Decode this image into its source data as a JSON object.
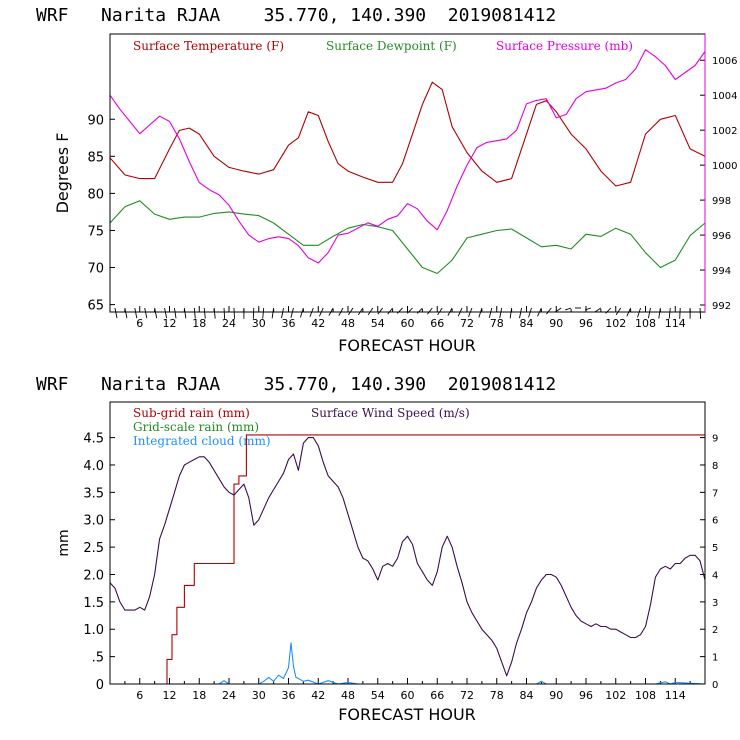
{
  "chart_data": [
    {
      "type": "line",
      "title": "WRF   Narita RJAA    35.770, 140.390  2019081412",
      "xlabel": "FORECAST HOUR",
      "ylabel": "Degrees F",
      "xlim": [
        0,
        120
      ],
      "ylim": [
        64,
        101.5
      ],
      "y2lim": [
        991.6,
        1007.5
      ],
      "x_ticks": [
        "6",
        "12",
        "18",
        "24",
        "30",
        "36",
        "42",
        "48",
        "54",
        "60",
        "66",
        "72",
        "78",
        "84",
        "90",
        "96",
        "102",
        "108",
        "114"
      ],
      "y_ticks": [
        "65",
        "70",
        "75",
        "80",
        "85",
        "90"
      ],
      "y2_ticks": [
        "992",
        "994",
        "996",
        "998",
        "1000",
        "1002",
        "1004",
        "1006"
      ],
      "colors": {
        "temperature": "#b00000",
        "dewpoint": "#228b22",
        "pressure": "#e000e0",
        "barbs": "#000000"
      },
      "legend": [
        "Surface Temperature (F)",
        "Surface Dewpoint (F)",
        "Surface Pressure (mb)"
      ],
      "series": [
        {
          "name": "Surface Temperature (F)",
          "axis": "left",
          "x": [
            0,
            3,
            6,
            9,
            12,
            14,
            16,
            18,
            21,
            24,
            27,
            30,
            33,
            36,
            38,
            40,
            42,
            44,
            46,
            48,
            51,
            54,
            57,
            59,
            61,
            63,
            65,
            67,
            69,
            72,
            75,
            78,
            81,
            84,
            86,
            88,
            90,
            93,
            96,
            99,
            102,
            105,
            108,
            111,
            114,
            117,
            120
          ],
          "values": [
            84.8,
            82.5,
            82,
            82,
            86,
            88.5,
            88.8,
            88,
            85,
            83.5,
            83,
            82.6,
            83.2,
            86.5,
            87.5,
            91,
            90.5,
            87,
            84,
            83,
            82.2,
            81.5,
            81.5,
            84,
            88,
            92,
            95,
            94,
            89,
            85.5,
            83,
            81.5,
            82,
            88,
            92,
            92.5,
            91,
            88,
            86,
            83,
            81,
            81.5,
            88,
            90,
            90.5,
            86,
            85
          ]
        },
        {
          "name": "Surface Dewpoint (F)",
          "axis": "left",
          "x": [
            0,
            3,
            6,
            9,
            12,
            15,
            18,
            21,
            24,
            27,
            30,
            33,
            36,
            39,
            42,
            45,
            48,
            51,
            54,
            57,
            60,
            63,
            66,
            69,
            72,
            75,
            78,
            81,
            84,
            87,
            90,
            93,
            96,
            99,
            102,
            105,
            108,
            111,
            114,
            117,
            120
          ],
          "values": [
            76,
            78.2,
            79,
            77.2,
            76.5,
            76.8,
            76.8,
            77.3,
            77.5,
            77.2,
            77,
            76,
            74.5,
            73,
            73,
            74.2,
            75.3,
            75.8,
            75.5,
            75,
            72.5,
            70,
            69.2,
            71,
            74,
            74.5,
            75,
            75.2,
            74,
            72.8,
            73,
            72.5,
            74.5,
            74.2,
            75.3,
            74.5,
            72,
            70,
            71,
            74.3,
            76
          ]
        },
        {
          "name": "Surface Pressure (mb)",
          "axis": "right",
          "x": [
            0,
            2,
            4,
            6,
            8,
            10,
            12,
            14,
            16,
            18,
            20,
            22,
            24,
            26,
            28,
            30,
            32,
            34,
            36,
            38,
            40,
            42,
            44,
            46,
            48,
            50,
            52,
            54,
            56,
            58,
            60,
            62,
            64,
            66,
            68,
            70,
            72,
            74,
            76,
            78,
            80,
            82,
            84,
            86,
            88,
            90,
            92,
            94,
            96,
            98,
            100,
            102,
            104,
            106,
            108,
            110,
            112,
            114,
            116,
            118,
            120
          ],
          "values": [
            1004,
            1003.2,
            1002.5,
            1001.8,
            1002.3,
            1002.8,
            1002.5,
            1001.5,
            1000.2,
            999,
            998.6,
            998.3,
            997.7,
            996.8,
            996,
            995.6,
            995.8,
            995.9,
            995.8,
            995.4,
            994.7,
            994.4,
            995,
            996,
            996.1,
            996.4,
            996.7,
            996.5,
            996.9,
            997.1,
            997.8,
            997.5,
            996.8,
            996.3,
            997.4,
            998.8,
            1000,
            1001,
            1001.3,
            1001.4,
            1001.5,
            1002,
            1003.5,
            1003.7,
            1003.8,
            1002.7,
            1002.9,
            1003.8,
            1004.2,
            1004.3,
            1004.4,
            1004.7,
            1004.9,
            1005.5,
            1006.6,
            1006.2,
            1005.7,
            1004.9,
            1005.3,
            1005.7,
            1006.5
          ]
        },
        {
          "name": "Wind barbs",
          "note": "wind barbs drawn along bottom of panel",
          "x": [
            1,
            3,
            5,
            7,
            9,
            11,
            13,
            15,
            17,
            19,
            21,
            23,
            25,
            27,
            29,
            31,
            33,
            35,
            37,
            39,
            41,
            43,
            45,
            47,
            49,
            51,
            53,
            55,
            57,
            59,
            61,
            63,
            65,
            67,
            69,
            71,
            73,
            75,
            77,
            79,
            81,
            83,
            85,
            87,
            89,
            91,
            93,
            95,
            97,
            99,
            101,
            103,
            105,
            107,
            109,
            111,
            113,
            115,
            117,
            119
          ],
          "directions_deg": [
            160,
            160,
            160,
            160,
            160,
            160,
            165,
            165,
            170,
            170,
            170,
            175,
            175,
            180,
            185,
            190,
            195,
            200,
            205,
            210,
            215,
            220,
            225,
            225,
            230,
            230,
            230,
            235,
            235,
            240,
            240,
            240,
            235,
            230,
            225,
            220,
            215,
            210,
            205,
            200,
            195,
            200,
            210,
            220,
            235,
            250,
            260,
            270,
            260,
            250,
            240,
            230,
            220,
            210,
            200,
            195,
            190,
            185,
            180,
            175
          ]
        }
      ]
    },
    {
      "type": "line",
      "title": "WRF   Narita RJAA    35.770, 140.390  2019081412",
      "xlabel": "FORECAST HOUR",
      "ylabel": "mm",
      "xlim": [
        0,
        120
      ],
      "ylim": [
        0,
        5.15
      ],
      "y2lim": [
        0,
        10.3
      ],
      "x_ticks": [
        "6",
        "12",
        "18",
        "24",
        "30",
        "36",
        "42",
        "48",
        "54",
        "60",
        "66",
        "72",
        "78",
        "84",
        "90",
        "96",
        "102",
        "108",
        "114"
      ],
      "y_ticks": [
        "0",
        ".5",
        "1.0",
        "1.5",
        "2.0",
        "2.5",
        "3.0",
        "3.5",
        "4.0",
        "4.5"
      ],
      "y2_ticks": [
        "0",
        "1",
        "2",
        "3",
        "4",
        "5",
        "6",
        "7",
        "8",
        "9"
      ],
      "colors": {
        "subgrid_rain": "#b00000",
        "gridscale_rain": "#228b22",
        "cloud": "#1e90ff",
        "wind": "#3a0f4e"
      },
      "legend": [
        "Sub-grid rain (mm)",
        "Surface Wind Speed (m/s)",
        "Grid-scale rain (mm)",
        "Integrated cloud (mm)"
      ],
      "series": [
        {
          "name": "Sub-grid rain (mm)",
          "axis": "left",
          "step": true,
          "x": [
            0,
            11,
            11.5,
            12.5,
            13.5,
            15,
            17,
            25,
            26,
            27.5,
            28,
            120
          ],
          "values": [
            0,
            0,
            0.45,
            0.9,
            1.4,
            1.8,
            2.2,
            3.65,
            3.8,
            4.55,
            4.55,
            4.55
          ]
        },
        {
          "name": "Grid-scale rain (mm)",
          "axis": "left",
          "x": [
            0,
            120
          ],
          "values": [
            0,
            0
          ]
        },
        {
          "name": "Integrated cloud (mm)",
          "axis": "left",
          "x": [
            0,
            20,
            22,
            23,
            24,
            26,
            28,
            30,
            31,
            32,
            33,
            34,
            35,
            36,
            36.5,
            37,
            37.5,
            38,
            39,
            40,
            42,
            44,
            46,
            48,
            50,
            85,
            86,
            87,
            88,
            90,
            110,
            112,
            113,
            114,
            120
          ],
          "values": [
            0,
            0,
            0,
            0.06,
            0,
            0,
            0,
            0,
            0.05,
            0.12,
            0.05,
            0.16,
            0.1,
            0.3,
            0.75,
            0.32,
            0.12,
            0.1,
            0.05,
            0.07,
            0,
            0.06,
            0,
            0.03,
            0,
            0,
            0,
            0.05,
            0,
            0,
            0,
            0.04,
            0,
            0.03,
            0
          ]
        },
        {
          "name": "Surface Wind Speed (m/s)",
          "axis": "right",
          "x": [
            0,
            1,
            2,
            3,
            4,
            5,
            6,
            7,
            8,
            9,
            10,
            11,
            12,
            13,
            14,
            15,
            16,
            17,
            18,
            19,
            20,
            21,
            22,
            23,
            24,
            25,
            26,
            27,
            28,
            29,
            30,
            31,
            32,
            33,
            34,
            35,
            36,
            37,
            38,
            39,
            40,
            41,
            42,
            43,
            44,
            45,
            46,
            47,
            48,
            49,
            50,
            51,
            52,
            53,
            54,
            55,
            56,
            57,
            58,
            59,
            60,
            61,
            62,
            63,
            64,
            65,
            66,
            67,
            68,
            69,
            70,
            71,
            72,
            73,
            74,
            75,
            76,
            77,
            78,
            79,
            80,
            81,
            82,
            83,
            84,
            85,
            86,
            87,
            88,
            89,
            90,
            91,
            92,
            93,
            94,
            95,
            96,
            97,
            98,
            99,
            100,
            101,
            102,
            103,
            104,
            105,
            106,
            107,
            108,
            109,
            110,
            111,
            112,
            113,
            114,
            115,
            116,
            117,
            118,
            119,
            120
          ],
          "values": [
            3.7,
            3.5,
            3,
            2.7,
            2.7,
            2.7,
            2.8,
            2.7,
            3.2,
            4,
            5.3,
            5.8,
            6.4,
            7,
            7.6,
            8,
            8.1,
            8.2,
            8.3,
            8.3,
            8.1,
            7.8,
            7.5,
            7.2,
            7,
            6.9,
            7.1,
            7.3,
            6.8,
            5.8,
            6,
            6.4,
            6.8,
            7.1,
            7.4,
            7.7,
            8.2,
            8.4,
            7.8,
            8.8,
            9,
            9,
            8.7,
            8.1,
            7.6,
            7.4,
            7.2,
            6.8,
            6.2,
            5.6,
            5,
            4.6,
            4.5,
            4.2,
            3.8,
            4.3,
            4.4,
            4.3,
            4.6,
            5.2,
            5.4,
            5.1,
            4.4,
            4.1,
            3.8,
            3.6,
            4.1,
            5,
            5.4,
            5,
            4.3,
            3.7,
            3,
            2.6,
            2.3,
            2,
            1.8,
            1.6,
            1.3,
            0.8,
            0.3,
            0.8,
            1.5,
            2,
            2.6,
            3,
            3.5,
            3.8,
            4,
            4,
            3.9,
            3.6,
            3.2,
            2.8,
            2.5,
            2.3,
            2.2,
            2.1,
            2.2,
            2.1,
            2.1,
            2,
            2,
            1.9,
            1.8,
            1.7,
            1.7,
            1.8,
            2.1,
            2.9,
            3.9,
            4.2,
            4.3,
            4.2,
            4.4,
            4.4,
            4.6,
            4.7,
            4.7,
            4.5,
            3.8
          ]
        }
      ]
    }
  ]
}
